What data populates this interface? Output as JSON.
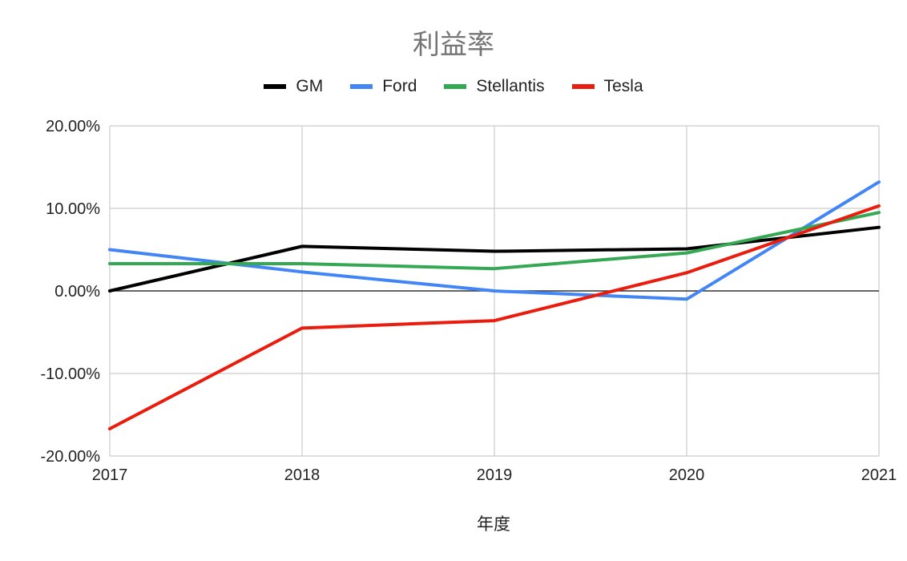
{
  "chart_data": {
    "type": "line",
    "title": "利益率",
    "xlabel": "年度",
    "ylabel": "",
    "x": [
      "2017",
      "2018",
      "2019",
      "2020",
      "2021"
    ],
    "ylim": [
      -20,
      20
    ],
    "yticks": [
      "20.00%",
      "10.00%",
      "0.00%",
      "-10.00%",
      "-20.00%"
    ],
    "ytick_values": [
      20,
      10,
      0,
      -10,
      -20
    ],
    "grid": true,
    "legend_position": "top",
    "series": [
      {
        "name": "GM",
        "color": "#000000",
        "values": [
          0.0,
          5.4,
          4.8,
          5.1,
          7.7
        ]
      },
      {
        "name": "Ford",
        "color": "#4285f4",
        "values": [
          5.0,
          2.3,
          0.0,
          -1.0,
          13.2
        ]
      },
      {
        "name": "Stellantis",
        "color": "#34a853",
        "values": [
          3.3,
          3.3,
          2.7,
          4.6,
          9.5
        ]
      },
      {
        "name": "Tesla",
        "color": "#ea1c0d",
        "values": [
          -16.7,
          -4.5,
          -3.6,
          2.2,
          10.3
        ]
      }
    ]
  }
}
